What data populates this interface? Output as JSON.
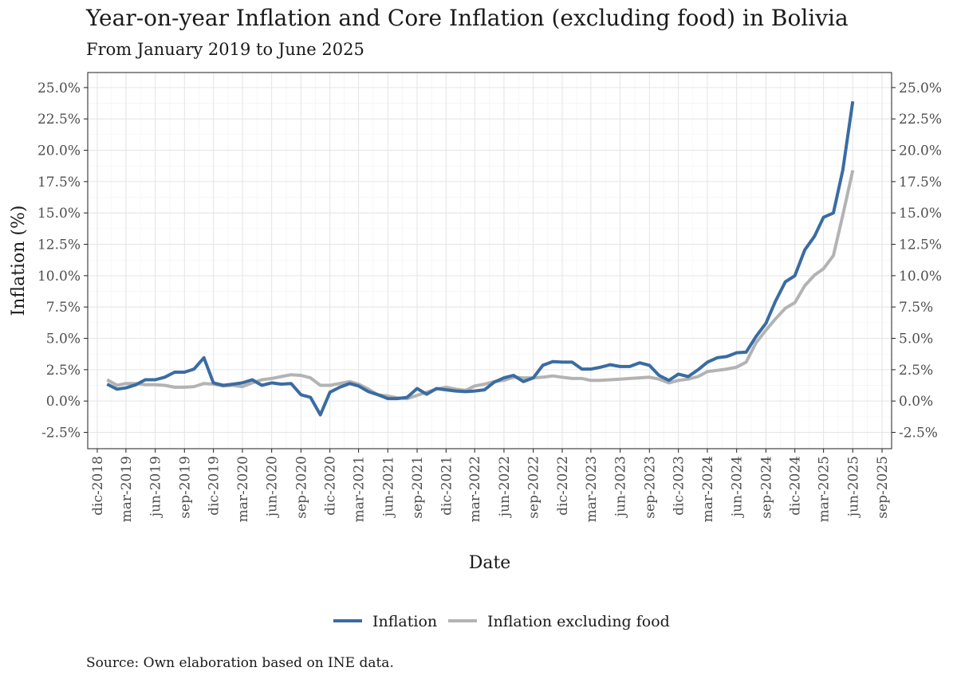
{
  "chart_data": {
    "type": "line",
    "title": "Year-on-year Inflation and Core Inflation (excluding food) in Bolivia",
    "subtitle": "From January 2019 to June 2025",
    "xlabel": "Date",
    "ylabel": "Inflation (%)",
    "caption": "Source: Own elaboration based on INE data.",
    "legend_position": "bottom",
    "grid": true,
    "secondary_y_axis": true,
    "xlim": [
      "2018-11-01",
      "2025-10-01"
    ],
    "ylim": [
      -3.8,
      26.2
    ],
    "x_ticks": [
      {
        "date": "2018-12-01",
        "label": "dic-2018"
      },
      {
        "date": "2019-03-01",
        "label": "mar-2019"
      },
      {
        "date": "2019-06-01",
        "label": "jun-2019"
      },
      {
        "date": "2019-09-01",
        "label": "sep-2019"
      },
      {
        "date": "2019-12-01",
        "label": "dic-2019"
      },
      {
        "date": "2020-03-01",
        "label": "mar-2020"
      },
      {
        "date": "2020-06-01",
        "label": "jun-2020"
      },
      {
        "date": "2020-09-01",
        "label": "sep-2020"
      },
      {
        "date": "2020-12-01",
        "label": "dic-2020"
      },
      {
        "date": "2021-03-01",
        "label": "mar-2021"
      },
      {
        "date": "2021-06-01",
        "label": "jun-2021"
      },
      {
        "date": "2021-09-01",
        "label": "sep-2021"
      },
      {
        "date": "2021-12-01",
        "label": "dic-2021"
      },
      {
        "date": "2022-03-01",
        "label": "mar-2022"
      },
      {
        "date": "2022-06-01",
        "label": "jun-2022"
      },
      {
        "date": "2022-09-01",
        "label": "sep-2022"
      },
      {
        "date": "2022-12-01",
        "label": "dic-2022"
      },
      {
        "date": "2023-03-01",
        "label": "mar-2023"
      },
      {
        "date": "2023-06-01",
        "label": "jun-2023"
      },
      {
        "date": "2023-09-01",
        "label": "sep-2023"
      },
      {
        "date": "2023-12-01",
        "label": "dic-2023"
      },
      {
        "date": "2024-03-01",
        "label": "mar-2024"
      },
      {
        "date": "2024-06-01",
        "label": "jun-2024"
      },
      {
        "date": "2024-09-01",
        "label": "sep-2024"
      },
      {
        "date": "2024-12-01",
        "label": "dic-2024"
      },
      {
        "date": "2025-03-01",
        "label": "mar-2025"
      },
      {
        "date": "2025-06-01",
        "label": "jun-2025"
      },
      {
        "date": "2025-09-01",
        "label": "sep-2025"
      }
    ],
    "y_ticks": [
      {
        "value": -2.5,
        "label": "-2.5%"
      },
      {
        "value": 0,
        "label": "0.0%"
      },
      {
        "value": 2.5,
        "label": "2.5%"
      },
      {
        "value": 5,
        "label": "5.0%"
      },
      {
        "value": 7.5,
        "label": "7.5%"
      },
      {
        "value": 10,
        "label": "10.0%"
      },
      {
        "value": 12.5,
        "label": "12.5%"
      },
      {
        "value": 15,
        "label": "15.0%"
      },
      {
        "value": 17.5,
        "label": "17.5%"
      },
      {
        "value": 20,
        "label": "20.0%"
      },
      {
        "value": 22.5,
        "label": "22.5%"
      },
      {
        "value": 25,
        "label": "25.0%"
      }
    ],
    "x": [
      "2019-01",
      "2019-02",
      "2019-03",
      "2019-04",
      "2019-05",
      "2019-06",
      "2019-07",
      "2019-08",
      "2019-09",
      "2019-10",
      "2019-11",
      "2019-12",
      "2020-01",
      "2020-02",
      "2020-03",
      "2020-04",
      "2020-05",
      "2020-06",
      "2020-07",
      "2020-08",
      "2020-09",
      "2020-10",
      "2020-11",
      "2020-12",
      "2021-01",
      "2021-02",
      "2021-03",
      "2021-04",
      "2021-05",
      "2021-06",
      "2021-07",
      "2021-08",
      "2021-09",
      "2021-10",
      "2021-11",
      "2021-12",
      "2022-01",
      "2022-02",
      "2022-03",
      "2022-04",
      "2022-05",
      "2022-06",
      "2022-07",
      "2022-08",
      "2022-09",
      "2022-10",
      "2022-11",
      "2022-12",
      "2023-01",
      "2023-02",
      "2023-03",
      "2023-04",
      "2023-05",
      "2023-06",
      "2023-07",
      "2023-08",
      "2023-09",
      "2023-10",
      "2023-11",
      "2023-12",
      "2024-01",
      "2024-02",
      "2024-03",
      "2024-04",
      "2024-05",
      "2024-06",
      "2024-07",
      "2024-08",
      "2024-09",
      "2024-10",
      "2024-11",
      "2024-12",
      "2025-01",
      "2025-02",
      "2025-03",
      "2025-04",
      "2025-05",
      "2025-06"
    ],
    "series": [
      {
        "name": "Inflation",
        "color": "#3a6ca2",
        "values": [
          1.35,
          0.95,
          1.05,
          1.3,
          1.7,
          1.7,
          1.9,
          2.3,
          2.3,
          2.55,
          3.45,
          1.45,
          1.25,
          1.35,
          1.45,
          1.7,
          1.25,
          1.45,
          1.35,
          1.4,
          0.5,
          0.3,
          -1.1,
          0.7,
          1.1,
          1.4,
          1.2,
          0.75,
          0.5,
          0.2,
          0.2,
          0.3,
          1.0,
          0.55,
          1.0,
          0.9,
          0.8,
          0.75,
          0.8,
          0.9,
          1.5,
          1.85,
          2.05,
          1.55,
          1.85,
          2.85,
          3.15,
          3.1,
          3.1,
          2.55,
          2.55,
          2.7,
          2.9,
          2.75,
          2.75,
          3.05,
          2.85,
          2.05,
          1.65,
          2.15,
          1.95,
          2.5,
          3.1,
          3.45,
          3.55,
          3.85,
          3.9,
          5.15,
          6.2,
          7.95,
          9.5,
          10.0,
          12.05,
          13.15,
          14.65,
          15.0,
          18.45,
          23.9
        ]
      },
      {
        "name": "Inflation excluding food",
        "color": "#b3b3b3",
        "values": [
          1.7,
          1.25,
          1.4,
          1.4,
          1.3,
          1.3,
          1.25,
          1.1,
          1.1,
          1.15,
          1.4,
          1.35,
          1.2,
          1.25,
          1.15,
          1.45,
          1.7,
          1.8,
          1.95,
          2.1,
          2.05,
          1.85,
          1.25,
          1.25,
          1.4,
          1.55,
          1.35,
          0.95,
          0.5,
          0.4,
          0.25,
          0.2,
          0.45,
          0.7,
          0.95,
          1.1,
          0.95,
          0.85,
          1.2,
          1.35,
          1.55,
          1.65,
          1.9,
          1.85,
          1.85,
          1.9,
          2.0,
          1.9,
          1.8,
          1.8,
          1.65,
          1.65,
          1.7,
          1.75,
          1.8,
          1.85,
          1.9,
          1.75,
          1.45,
          1.65,
          1.75,
          1.95,
          2.35,
          2.45,
          2.55,
          2.7,
          3.1,
          4.65,
          5.65,
          6.55,
          7.4,
          7.85,
          9.2,
          10.05,
          10.55,
          11.6,
          14.85,
          18.4
        ]
      }
    ]
  }
}
